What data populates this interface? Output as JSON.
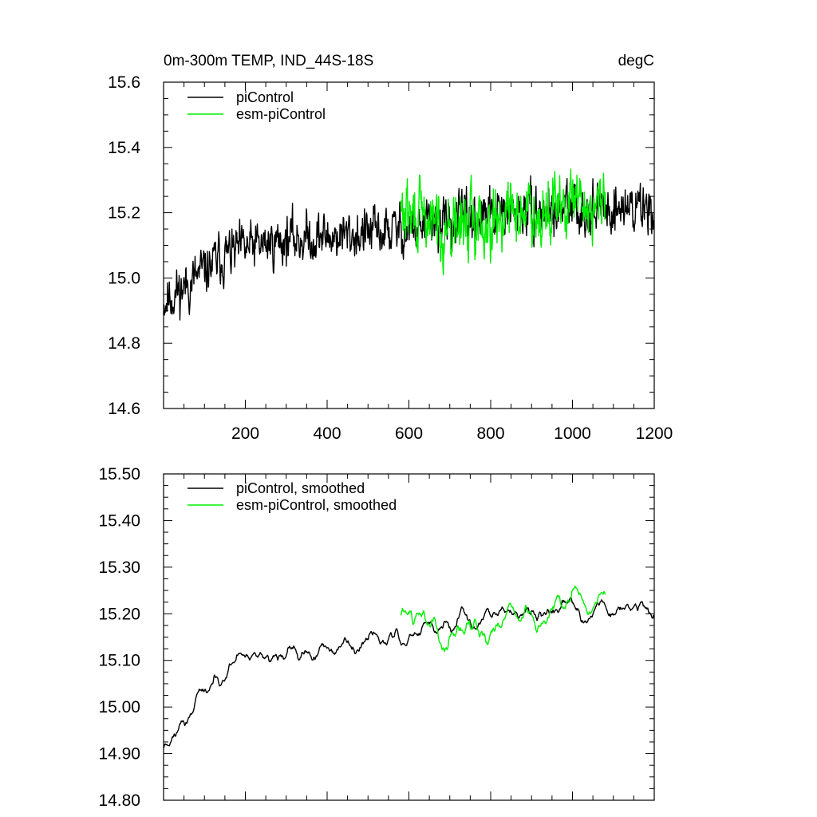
{
  "chart_data": [
    {
      "type": "line",
      "title_left": "0m-300m TEMP, IND_44S-18S",
      "title_right": "degC",
      "xlim": [
        0,
        1200
      ],
      "ylim": [
        14.6,
        15.6
      ],
      "xticks": [
        200,
        400,
        600,
        800,
        1000,
        1200
      ],
      "xtick_labels": [
        "200",
        "400",
        "600",
        "800",
        "1000",
        "1200"
      ],
      "yticks": [
        14.6,
        14.8,
        15.0,
        15.2,
        15.4,
        15.6
      ],
      "ytick_labels": [
        "14.6",
        "14.8",
        "15.0",
        "15.2",
        "15.4",
        "15.6"
      ],
      "legend_position": "top-left",
      "series": [
        {
          "name": "piControl",
          "color": "#000000",
          "x_start": 0,
          "x_end": 1200,
          "n_points": 1200,
          "seed": 11,
          "trend": [
            [
              0,
              14.93
            ],
            [
              60,
              14.98
            ],
            [
              150,
              15.07
            ],
            [
              300,
              15.12
            ],
            [
              450,
              15.13
            ],
            [
              600,
              15.15
            ],
            [
              800,
              15.19
            ],
            [
              1000,
              15.21
            ],
            [
              1200,
              15.22
            ]
          ],
          "noise_amplitude": 0.2,
          "smooth_window": 1
        },
        {
          "name": "esm-piControl",
          "color": "#00ee00",
          "x_start": 580,
          "x_end": 1080,
          "n_points": 500,
          "seed": 29,
          "trend": [
            [
              580,
              15.2
            ],
            [
              700,
              15.15
            ],
            [
              850,
              15.2
            ],
            [
              1000,
              15.22
            ],
            [
              1080,
              15.22
            ]
          ],
          "noise_amplitude": 0.26,
          "smooth_window": 1
        }
      ]
    },
    {
      "type": "line",
      "title_left": "",
      "title_right": "",
      "xlim": [
        0,
        1200
      ],
      "ylim": [
        14.8,
        15.5
      ],
      "xticks": [
        200,
        400,
        600,
        800,
        1000,
        1200
      ],
      "xtick_labels": [],
      "yticks": [
        14.8,
        14.9,
        15.0,
        15.1,
        15.2,
        15.3,
        15.4,
        15.5
      ],
      "ytick_labels": [
        "14.80",
        "14.90",
        "15.00",
        "15.10",
        "15.20",
        "15.30",
        "15.40",
        "15.50"
      ],
      "legend_position": "top-left",
      "series": [
        {
          "name": "piControl, smoothed",
          "color": "#000000",
          "x_start": 0,
          "x_end": 1200,
          "n_points": 1200,
          "seed": 11,
          "trend": [
            [
              0,
              14.93
            ],
            [
              60,
              14.98
            ],
            [
              150,
              15.07
            ],
            [
              300,
              15.12
            ],
            [
              450,
              15.13
            ],
            [
              600,
              15.15
            ],
            [
              800,
              15.19
            ],
            [
              1000,
              15.21
            ],
            [
              1200,
              15.22
            ]
          ],
          "noise_amplitude": 0.2,
          "smooth_window": 5
        },
        {
          "name": "esm-piControl, smoothed",
          "color": "#00ee00",
          "x_start": 580,
          "x_end": 1080,
          "n_points": 500,
          "seed": 29,
          "trend": [
            [
              580,
              15.2
            ],
            [
              700,
              15.15
            ],
            [
              850,
              15.2
            ],
            [
              1000,
              15.22
            ],
            [
              1080,
              15.22
            ]
          ],
          "noise_amplitude": 0.26,
          "smooth_window": 5
        }
      ]
    }
  ]
}
